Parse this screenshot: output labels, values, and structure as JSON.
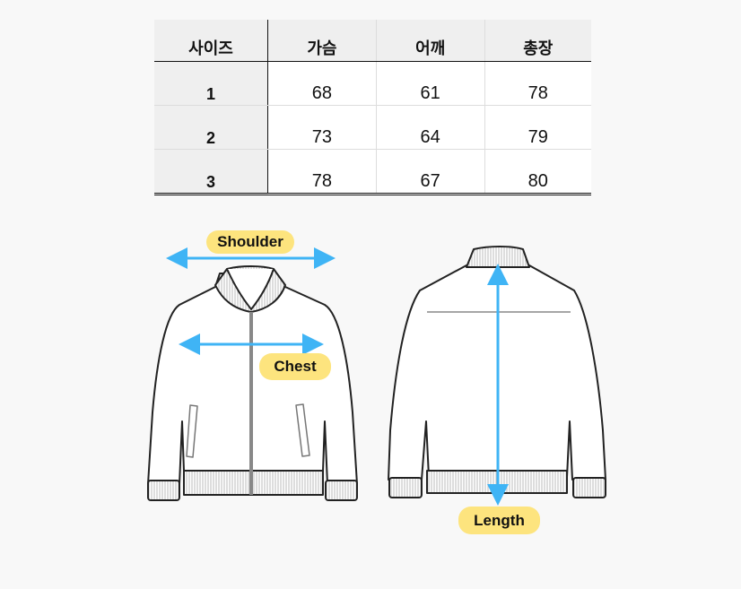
{
  "size_table": {
    "headers": [
      "사이즈",
      "가슴",
      "어깨",
      "총장"
    ],
    "rows": [
      {
        "size": "1",
        "chest": "68",
        "shoulder": "61",
        "length": "78"
      },
      {
        "size": "2",
        "chest": "73",
        "shoulder": "64",
        "length": "79"
      },
      {
        "size": "3",
        "chest": "78",
        "shoulder": "67",
        "length": "80"
      }
    ]
  },
  "diagram": {
    "labels": {
      "shoulder": "Shoulder",
      "chest": "Chest",
      "length": "Length"
    },
    "colors": {
      "arrow": "#3fb4f5",
      "label_bg": "#fde47e",
      "outline": "#222222"
    }
  }
}
